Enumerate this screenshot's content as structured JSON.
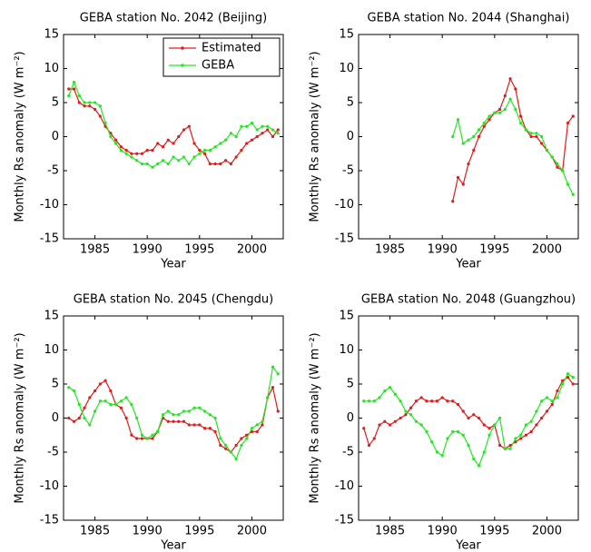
{
  "chart_data": [
    {
      "type": "line",
      "title": "GEBA station No. 2042 (Beijing)",
      "x_label": "Year",
      "y_label": "Monthly Rs anomaly (W m⁻²)",
      "xlim": [
        1982,
        2003
      ],
      "xticks": [
        1985,
        1990,
        1995,
        2000
      ],
      "ylim": [
        -15,
        15
      ],
      "yticks": [
        -15,
        -10,
        -5,
        0,
        5,
        10,
        15
      ],
      "legend": "upper right",
      "x": [
        1982.5,
        1983,
        1983.5,
        1984,
        1984.5,
        1985,
        1985.5,
        1986,
        1986.5,
        1987,
        1987.5,
        1988,
        1988.5,
        1989,
        1989.5,
        1990,
        1990.5,
        1991,
        1991.5,
        1992,
        1992.5,
        1993,
        1993.5,
        1994,
        1994.5,
        1995,
        1995.5,
        1996,
        1996.5,
        1997,
        1997.5,
        1998,
        1998.5,
        1999,
        1999.5,
        2000,
        2000.5,
        2001,
        2001.5,
        2002,
        2002.5
      ],
      "series": [
        {
          "name": "Estimated",
          "color": "#e41a1a",
          "values": [
            7,
            7,
            5,
            4.5,
            4.5,
            4,
            3,
            1.5,
            0.5,
            -0.5,
            -1.5,
            -2,
            -2.5,
            -2.5,
            -2.5,
            -2,
            -2,
            -1,
            -1.5,
            -0.5,
            -1,
            0,
            1,
            1.5,
            -1,
            -2,
            -2.5,
            -4,
            -4,
            -4,
            -3.5,
            -4,
            -3,
            -2,
            -1,
            -0.5,
            0,
            0.5,
            1,
            0,
            1
          ]
        },
        {
          "name": "GEBA",
          "color": "#22e822",
          "values": [
            6,
            8,
            6,
            5,
            5,
            5,
            4.5,
            2,
            0,
            -1,
            -2,
            -2.5,
            -3,
            -3.5,
            -4,
            -4,
            -4.5,
            -4,
            -3.5,
            -4,
            -3,
            -3.5,
            -3,
            -4,
            -3,
            -2.5,
            -2,
            -2,
            -1.5,
            -1,
            -0.5,
            0.5,
            0,
            1.5,
            1.5,
            2,
            1,
            1.5,
            1.5,
            1,
            0.5
          ]
        }
      ]
    },
    {
      "type": "line",
      "title": "GEBA station No. 2044 (Shanghai)",
      "x_label": "Year",
      "y_label": "Monthly Rs anomaly (W m⁻²)",
      "xlim": [
        1982,
        2003
      ],
      "xticks": [
        1985,
        1990,
        1995,
        2000
      ],
      "ylim": [
        -15,
        15
      ],
      "yticks": [
        -15,
        -10,
        -5,
        0,
        5,
        10,
        15
      ],
      "x": [
        1991,
        1991.5,
        1992,
        1992.5,
        1993,
        1993.5,
        1994,
        1994.5,
        1995,
        1995.5,
        1996,
        1996.5,
        1997,
        1997.5,
        1998,
        1998.5,
        1999,
        1999.5,
        2000,
        2000.5,
        2001,
        2001.5,
        2002,
        2002.5
      ],
      "series": [
        {
          "name": "Estimated",
          "color": "#e41a1a",
          "values": [
            -9.5,
            -6,
            -7,
            -4,
            -2,
            0,
            1.5,
            2.5,
            3.5,
            4,
            6,
            8.5,
            7,
            3,
            1,
            0,
            0,
            -1,
            -2,
            -3,
            -4.5,
            -5,
            2,
            3
          ]
        },
        {
          "name": "GEBA",
          "color": "#22e822",
          "values": [
            0,
            2.5,
            -1,
            -0.5,
            0,
            1,
            2,
            3,
            3.5,
            3.5,
            4,
            5.5,
            4,
            2,
            1,
            0.5,
            0.5,
            0,
            -2,
            -3,
            -4,
            -5,
            -7,
            -8.5
          ]
        }
      ]
    },
    {
      "type": "line",
      "title": "GEBA station No. 2045 (Chengdu)",
      "x_label": "Year",
      "y_label": "Monthly Rs anomaly (W m⁻²)",
      "xlim": [
        1982,
        2003
      ],
      "xticks": [
        1985,
        1990,
        1995,
        2000
      ],
      "ylim": [
        -15,
        15
      ],
      "yticks": [
        -15,
        -10,
        -5,
        0,
        5,
        10,
        15
      ],
      "x": [
        1982.5,
        1983,
        1983.5,
        1984,
        1984.5,
        1985,
        1985.5,
        1986,
        1986.5,
        1987,
        1987.5,
        1988,
        1988.5,
        1989,
        1989.5,
        1990,
        1990.5,
        1991,
        1991.5,
        1992,
        1992.5,
        1993,
        1993.5,
        1994,
        1994.5,
        1995,
        1995.5,
        1996,
        1996.5,
        1997,
        1997.5,
        1998,
        1998.5,
        1999,
        1999.5,
        2000,
        2000.5,
        2001,
        2001.5,
        2002,
        2002.5
      ],
      "series": [
        {
          "name": "Estimated",
          "color": "#e41a1a",
          "values": [
            0,
            -0.5,
            0,
            1.5,
            3,
            4,
            5,
            5.5,
            4,
            2,
            1.5,
            0,
            -2.5,
            -3,
            -3,
            -3,
            -3,
            -2,
            0,
            -0.5,
            -0.5,
            -0.5,
            -0.5,
            -1,
            -1,
            -1,
            -1.5,
            -1.5,
            -2,
            -4,
            -4.5,
            -5,
            -4,
            -3,
            -2.5,
            -2,
            -2,
            -1,
            3,
            4.5,
            1
          ]
        },
        {
          "name": "GEBA",
          "color": "#22e822",
          "values": [
            4.5,
            4,
            2,
            0,
            -1,
            1,
            2.5,
            2.5,
            2,
            2,
            2.5,
            3,
            2,
            0,
            -2.5,
            -3,
            -2.5,
            -2,
            0.5,
            1,
            0.5,
            0.5,
            1,
            1,
            1.5,
            1.5,
            1,
            0.5,
            0,
            -3,
            -4,
            -5,
            -6,
            -4,
            -3,
            -1.5,
            -1,
            -0.5,
            3,
            7.5,
            6.5
          ]
        }
      ]
    },
    {
      "type": "line",
      "title": "GEBA station No. 2048 (Guangzhou)",
      "x_label": "Year",
      "y_label": "Monthly Rs anomaly (W m⁻²)",
      "xlim": [
        1982,
        2003
      ],
      "xticks": [
        1985,
        1990,
        1995,
        2000
      ],
      "ylim": [
        -15,
        15
      ],
      "yticks": [
        -15,
        -10,
        -5,
        0,
        5,
        10,
        15
      ],
      "x": [
        1982.5,
        1983,
        1983.5,
        1984,
        1984.5,
        1985,
        1985.5,
        1986,
        1986.5,
        1987,
        1987.5,
        1988,
        1988.5,
        1989,
        1989.5,
        1990,
        1990.5,
        1991,
        1991.5,
        1992,
        1992.5,
        1993,
        1993.5,
        1994,
        1994.5,
        1995,
        1995.5,
        1996,
        1996.5,
        1997,
        1997.5,
        1998,
        1998.5,
        1999,
        1999.5,
        2000,
        2000.5,
        2001,
        2001.5,
        2002,
        2002.5
      ],
      "series": [
        {
          "name": "Estimated",
          "color": "#e41a1a",
          "values": [
            -1.5,
            -4,
            -3,
            -1,
            -0.5,
            -1,
            -0.5,
            0,
            0.5,
            1.5,
            2.5,
            3,
            2.5,
            2.5,
            2.5,
            3,
            2.5,
            2.5,
            2,
            1,
            0,
            0.5,
            0,
            -1,
            -1.5,
            -1,
            -4,
            -4.5,
            -4,
            -3.5,
            -3,
            -2.5,
            -2,
            -1,
            0,
            1,
            2,
            4,
            5.5,
            6,
            5
          ]
        },
        {
          "name": "GEBA",
          "color": "#22e822",
          "values": [
            2.5,
            2.5,
            2.5,
            3,
            4,
            4.5,
            3.5,
            2.5,
            1,
            0.5,
            -0.5,
            -1,
            -2,
            -3.5,
            -5,
            -5.5,
            -3,
            -2,
            -2,
            -2.5,
            -4,
            -6,
            -7,
            -5,
            -2.5,
            -1,
            0,
            -4.5,
            -4.5,
            -3,
            -2.5,
            -1,
            -0.5,
            1,
            2.5,
            3,
            2.5,
            3,
            5,
            6.5,
            6
          ]
        }
      ]
    }
  ]
}
